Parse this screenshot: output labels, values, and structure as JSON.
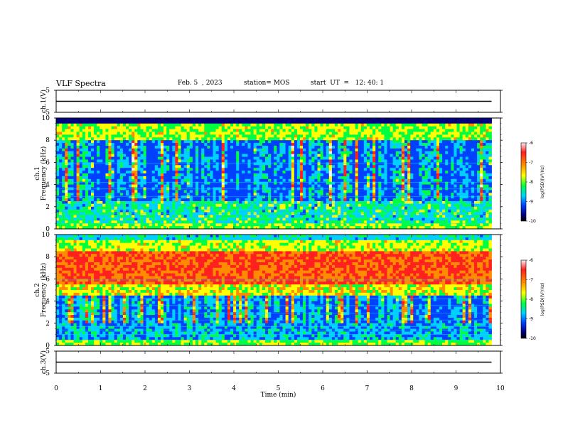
{
  "header": {
    "title": "VLF Spectra",
    "date": "Feb. 5  , 2023",
    "station": "station= MOS",
    "start": "start  UT  =   12: 40: 1"
  },
  "colorbar": {
    "label": "log(PSD)(V²/Hz)",
    "ticks": [
      "-6",
      "-7",
      "-8",
      "-9",
      "-10"
    ],
    "colors": [
      "#fff0f0",
      "#ff2020",
      "#ff8c00",
      "#ffff00",
      "#00ff40",
      "#00d0ff",
      "#0040ff",
      "#000080",
      "#000000"
    ]
  },
  "chart_data": [
    {
      "type": "line",
      "panel": "ch1-voltage",
      "ylabel": "ch.1(V)",
      "ylim": [
        -5,
        5
      ],
      "yticks": [
        "5",
        "-5"
      ],
      "x": [
        0,
        9.8
      ],
      "values": [
        0,
        0
      ]
    },
    {
      "type": "heatmap",
      "panel": "ch1-spectrogram",
      "ylabel": "ch.1\nFrequency (kHz)",
      "ylim": [
        0,
        10
      ],
      "yticks": [
        "10",
        "8",
        "6",
        "4",
        "2",
        "0"
      ],
      "x_range": [
        0,
        9.8
      ],
      "zlabel": "log(PSD)(V²/Hz)",
      "zlim": [
        -10,
        -6
      ]
    },
    {
      "type": "heatmap",
      "panel": "ch2-spectrogram",
      "ylabel": "ch.2\nFrequency (kHz)",
      "ylim": [
        0,
        10
      ],
      "yticks": [
        "10",
        "8",
        "6",
        "4",
        "2",
        "0"
      ],
      "x_range": [
        0,
        9.8
      ],
      "zlabel": "log(PSD)(V²/Hz)",
      "zlim": [
        -10,
        -6
      ]
    },
    {
      "type": "line",
      "panel": "ch3-voltage",
      "ylabel": "ch.3(V)",
      "ylim": [
        -5,
        5
      ],
      "yticks": [
        "5",
        "-5"
      ],
      "x": [
        0,
        9.8
      ],
      "values": [
        0,
        0
      ],
      "xlabel": "Time  (min)",
      "xlim": [
        0,
        10
      ],
      "xticks": [
        "0",
        "1",
        "2",
        "3",
        "4",
        "5",
        "6",
        "7",
        "8",
        "9",
        "10"
      ]
    }
  ]
}
